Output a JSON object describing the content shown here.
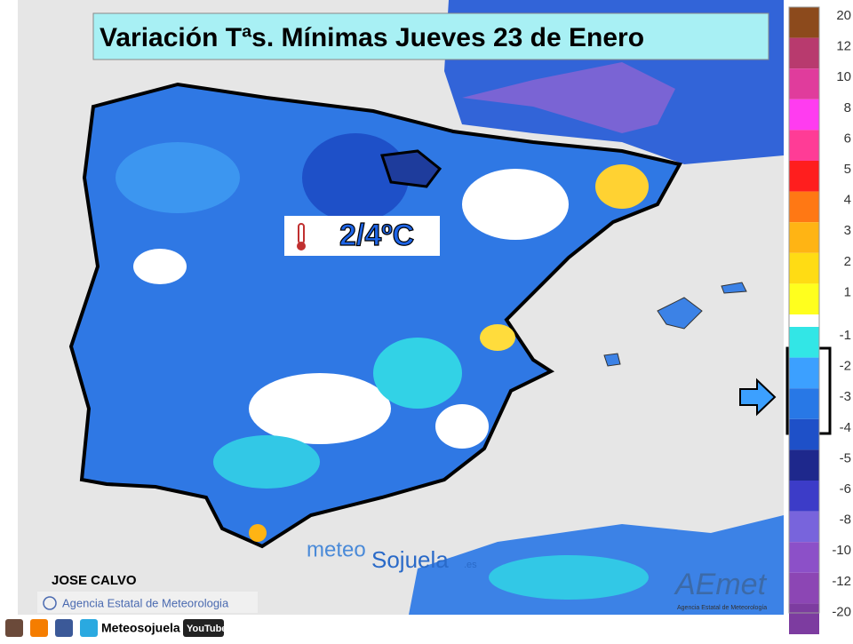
{
  "header": {
    "title": "Variación Tªs. Mínimas Jueves 23 de Enero"
  },
  "map_label": "2/4ºC",
  "legend": {
    "items": [
      {
        "label": "20",
        "color": "#8c4a1c"
      },
      {
        "label": "12",
        "color": "#b83a6e"
      },
      {
        "label": "10",
        "color": "#e03c9c"
      },
      {
        "label": "8",
        "color": "#ff3cf0"
      },
      {
        "label": "6",
        "color": "#ff3c96"
      },
      {
        "label": "5",
        "color": "#ff1e1e"
      },
      {
        "label": "4",
        "color": "#ff7814"
      },
      {
        "label": "3",
        "color": "#ffb414"
      },
      {
        "label": "2",
        "color": "#ffdc14"
      },
      {
        "label": "1",
        "color": "#ffff1e"
      },
      {
        "label": "-1",
        "color": "#32e6e6"
      },
      {
        "label": "-2",
        "color": "#3ca0ff"
      },
      {
        "label": "-3",
        "color": "#2878e6"
      },
      {
        "label": "-4",
        "color": "#1e50c8"
      },
      {
        "label": "-5",
        "color": "#1e288c"
      },
      {
        "label": "-6",
        "color": "#3c3cc8"
      },
      {
        "label": "-8",
        "color": "#7864dc"
      },
      {
        "label": "-10",
        "color": "#8c50c8"
      },
      {
        "label": "-12",
        "color": "#8c46b4"
      },
      {
        "label": "-20",
        "color": "#7d3ca0"
      }
    ]
  },
  "credits": {
    "author": "JOSE CALVO",
    "copyright": "Agencia Estatal de Meteorologia",
    "watermark_a": "meteo",
    "watermark_b": "Sojuela",
    "watermark_c": ".es",
    "logo": "AEmet",
    "logo_sub": "Agencia Estatal de Meteorología"
  },
  "footer": {
    "social": "Meteosojuela",
    "youtube": "YouTube"
  }
}
